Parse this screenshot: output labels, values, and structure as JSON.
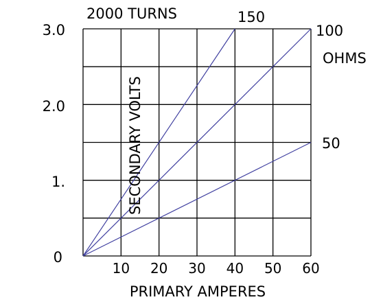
{
  "chart_data": {
    "type": "line",
    "title": "2000 TURNS",
    "xlabel": "PRIMARY AMPERES",
    "ylabel": "SECONDARY VOLTS",
    "xlim": [
      0,
      60
    ],
    "ylim": [
      0,
      3.0
    ],
    "x_ticks": [
      {
        "value": 10,
        "label": "10"
      },
      {
        "value": 20,
        "label": "20"
      },
      {
        "value": 30,
        "label": "30"
      },
      {
        "value": 40,
        "label": "40"
      },
      {
        "value": 50,
        "label": "50"
      },
      {
        "value": 60,
        "label": "60"
      }
    ],
    "y_ticks": [
      {
        "value": 0,
        "label": "0"
      },
      {
        "value": 1.0,
        "label": "1."
      },
      {
        "value": 2.0,
        "label": "2.0"
      },
      {
        "value": 3.0,
        "label": "3.0"
      }
    ],
    "grid": true,
    "line_color": "#4040a0",
    "series": [
      {
        "name": "150",
        "points": [
          [
            0,
            0
          ],
          [
            40,
            3.0
          ]
        ]
      },
      {
        "name": "100",
        "points": [
          [
            0,
            0
          ],
          [
            60,
            3.0
          ]
        ]
      },
      {
        "name": "50",
        "points": [
          [
            0,
            0
          ],
          [
            60,
            1.5
          ]
        ]
      }
    ],
    "unit_label": "OHMS"
  }
}
